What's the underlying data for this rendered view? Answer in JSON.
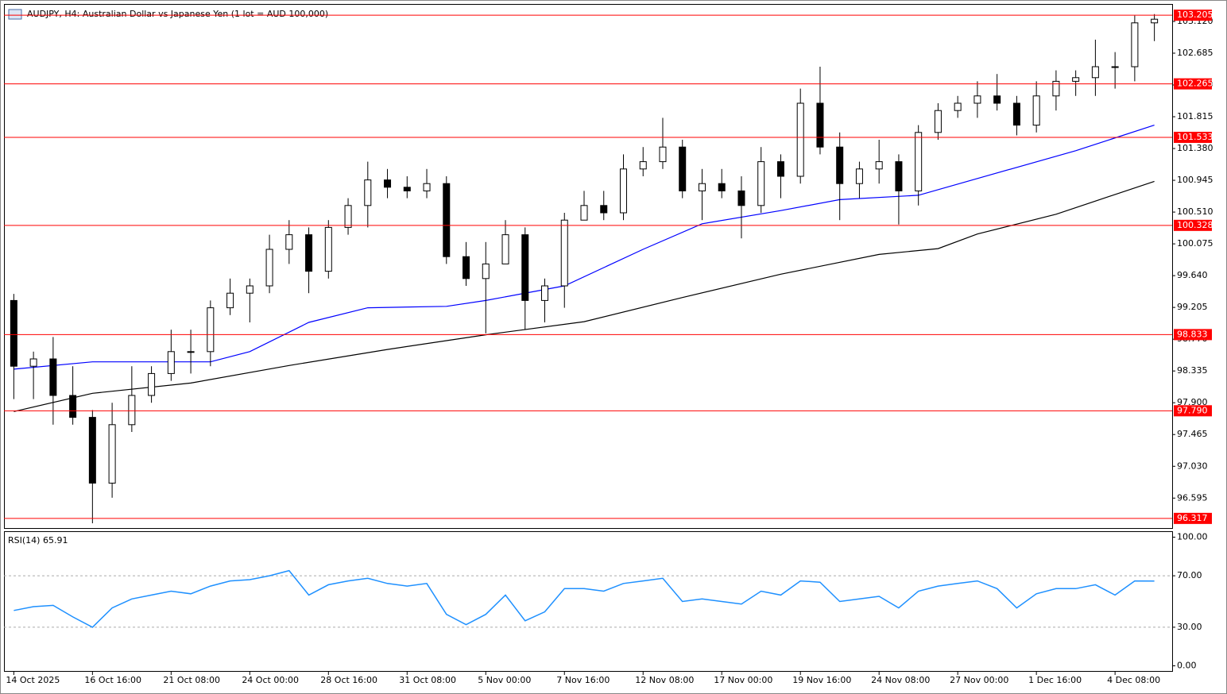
{
  "chart_data": [
    {
      "type": "candlestick",
      "title": "AUDJPY, H4:  Australian Dollar vs Japanese Yen (1 lot = AUD 100,000)",
      "categories": [
        "14 Oct 2025",
        null,
        null,
        null,
        "16 Oct 16:00",
        null,
        null,
        null,
        "21 Oct 08:00",
        null,
        null,
        null,
        "24 Oct 00:00",
        null,
        null,
        null,
        "28 Oct 16:00",
        null,
        null,
        null,
        "31 Oct 08:00",
        null,
        null,
        null,
        "5 Nov 00:00",
        null,
        null,
        null,
        "7 Nov 16:00",
        null,
        null,
        null,
        "12 Nov 08:00",
        null,
        null,
        null,
        "17 Nov 00:00",
        null,
        null,
        null,
        "19 Nov 16:00",
        null,
        null,
        null,
        "24 Nov 08:00",
        null,
        null,
        null,
        "27 Nov 00:00",
        null,
        null,
        null,
        "1 Dec 16:00",
        null,
        null,
        null,
        "4 Dec 08:00",
        null,
        null
      ],
      "open": [
        99.3,
        98.4,
        98.5,
        98.0,
        97.7,
        96.8,
        97.6,
        98.0,
        98.3,
        98.6,
        98.6,
        99.2,
        99.4,
        99.5,
        100.0,
        100.2,
        99.7,
        100.3,
        100.6,
        100.95,
        100.85,
        100.8,
        100.9,
        99.9,
        99.6,
        99.8,
        100.2,
        99.3,
        99.5,
        100.4,
        100.6,
        100.5,
        101.1,
        101.2,
        101.4,
        100.8,
        100.9,
        100.8,
        100.6,
        101.2,
        101.0,
        102.0,
        101.4,
        100.9,
        101.1,
        101.2,
        100.8,
        101.6,
        101.9,
        102.0,
        102.1,
        102.0,
        101.7,
        102.1,
        102.3,
        102.35,
        102.5,
        102.5,
        103.1
      ],
      "high": [
        99.39,
        98.6,
        98.8,
        98.4,
        97.8,
        97.9,
        98.4,
        98.4,
        98.9,
        98.9,
        99.3,
        99.6,
        99.6,
        100.2,
        100.4,
        100.3,
        100.4,
        100.7,
        101.2,
        101.1,
        101.0,
        101.1,
        101.0,
        100.1,
        100.1,
        100.4,
        100.3,
        99.6,
        100.5,
        100.8,
        100.8,
        101.3,
        101.4,
        101.8,
        101.5,
        101.1,
        101.1,
        101.0,
        101.4,
        101.3,
        102.2,
        102.5,
        101.6,
        101.2,
        101.5,
        101.3,
        101.7,
        102.0,
        102.1,
        102.3,
        102.4,
        102.1,
        102.3,
        102.45,
        102.45,
        102.87,
        102.7,
        103.2,
        103.22
      ],
      "low": [
        97.95,
        97.95,
        97.6,
        97.6,
        96.25,
        96.6,
        97.5,
        97.9,
        98.2,
        98.3,
        98.4,
        99.1,
        99.0,
        99.4,
        99.8,
        99.4,
        99.6,
        100.2,
        100.3,
        100.7,
        100.7,
        100.7,
        99.8,
        99.5,
        98.85,
        99.8,
        98.9,
        99.0,
        99.2,
        100.4,
        100.4,
        100.4,
        101.0,
        101.1,
        100.7,
        100.4,
        100.7,
        100.15,
        100.5,
        100.7,
        100.9,
        101.3,
        100.4,
        100.7,
        100.9,
        100.34,
        100.6,
        101.5,
        101.8,
        101.8,
        101.9,
        101.56,
        101.6,
        101.9,
        102.1,
        102.1,
        102.2,
        102.3,
        102.85
      ],
      "close": [
        98.4,
        98.5,
        98.0,
        97.7,
        96.8,
        97.6,
        98.0,
        98.3,
        98.6,
        98.6,
        99.2,
        99.4,
        99.5,
        100.0,
        100.2,
        99.7,
        100.3,
        100.6,
        100.95,
        100.85,
        100.8,
        100.9,
        99.9,
        99.6,
        99.8,
        100.2,
        99.3,
        99.5,
        100.4,
        100.6,
        100.5,
        101.1,
        101.2,
        101.4,
        100.8,
        100.9,
        100.8,
        100.6,
        101.2,
        101.0,
        102.0,
        101.4,
        100.9,
        101.1,
        101.2,
        100.8,
        101.6,
        101.9,
        102.0,
        102.1,
        102.0,
        101.7,
        102.1,
        102.3,
        102.35,
        102.5,
        102.5,
        103.1,
        103.15
      ],
      "overlays": [
        {
          "color": "#0000ff",
          "x": [
            0,
            4,
            10,
            12,
            15,
            18,
            22,
            24,
            28,
            32,
            35,
            39,
            42,
            46,
            49,
            54,
            58
          ],
          "values": [
            98.36,
            98.46,
            98.46,
            98.6,
            99.0,
            99.2,
            99.22,
            99.3,
            99.5,
            100.0,
            100.35,
            100.53,
            100.68,
            100.74,
            100.97,
            101.35,
            101.7
          ]
        },
        {
          "color": "#000000",
          "x": [
            0,
            4,
            9,
            14,
            19,
            24,
            29,
            34,
            39,
            44,
            47,
            49,
            53,
            58
          ],
          "values": [
            97.78,
            98.03,
            98.17,
            98.41,
            98.63,
            98.83,
            99.01,
            99.34,
            99.66,
            99.93,
            100.01,
            100.21,
            100.48,
            100.93
          ]
        }
      ],
      "levels": [
        103.205,
        102.265,
        101.533,
        100.328,
        98.833,
        {
          "value": 97.79,
          "label": "97.790"
        },
        96.317
      ],
      "level_color": "#ff0000",
      "ylim": [
        96.185,
        103.326
      ],
      "yticks": [
        96.595,
        {
          "value": 97.03,
          "label": "97.030"
        },
        97.465,
        {
          "value": 97.9,
          "label": "97.900"
        },
        98.335,
        {
          "value": 98.77,
          "label": "98.770"
        },
        99.205,
        {
          "value": 99.64,
          "label": "99.640"
        },
        100.075,
        {
          "value": 100.51,
          "label": "100.510"
        },
        100.945,
        {
          "value": 101.38,
          "label": "101.380"
        },
        101.815,
        {
          "value": 102.25,
          "label": "102.250"
        },
        102.685,
        {
          "value": 103.12,
          "label": "103.120"
        }
      ]
    },
    {
      "type": "line",
      "title": "RSI(14) 65.91",
      "color": "#1e90ff",
      "values": [
        43,
        46,
        47,
        38,
        30,
        45,
        52,
        55,
        58,
        56,
        62,
        66,
        67,
        70,
        74,
        55,
        63,
        66,
        68,
        64,
        62,
        64,
        40,
        32,
        40,
        55,
        35,
        42,
        60,
        60,
        58,
        64,
        66,
        68,
        50,
        52,
        50,
        48,
        58,
        55,
        66,
        65,
        50,
        52,
        54,
        45,
        58,
        62,
        64,
        66,
        60,
        45,
        56,
        60,
        60,
        63,
        55,
        66,
        65.91
      ],
      "ylim": [
        -4,
        104
      ],
      "yticks": [
        {
          "value": 0,
          "label": "0.00"
        },
        {
          "value": 30,
          "label": "30.00"
        },
        {
          "value": 70,
          "label": "70.00"
        },
        {
          "value": 100,
          "label": "100.00"
        }
      ],
      "guides": [
        30,
        70
      ]
    }
  ]
}
